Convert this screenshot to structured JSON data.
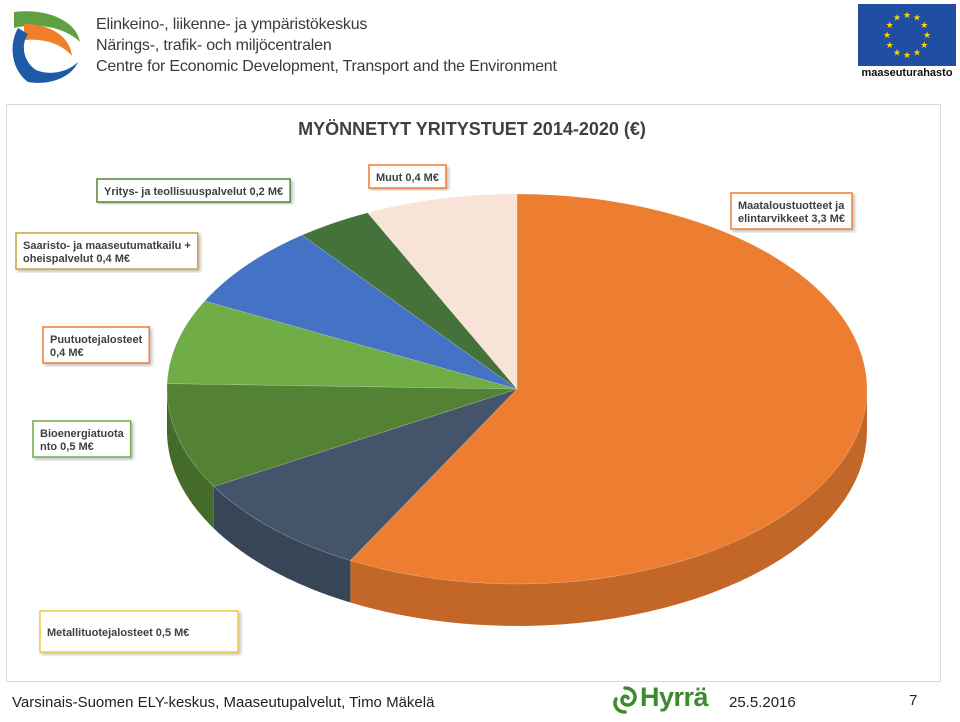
{
  "header": {
    "org_lines": [
      "Elinkeino-, liikenne- ja ympäristökeskus",
      "Närings-, trafik- och miljöcentralen",
      "Centre for Economic Development, Transport and the Environment"
    ],
    "eu_label": "maaseuturahasto"
  },
  "chart_data": {
    "type": "pie",
    "title": "MYÖNNETYT YRITYSTUET 2014-2020 (€)",
    "unit": "M€",
    "slices": [
      {
        "label": "Maataloustuotteet ja elintarvikkeet 3,3 M€",
        "label_lines": [
          "Maataloustuotteet ja",
          "elintarvikkeet 3,3 M€"
        ],
        "value": 3.3,
        "color": "#ed7d31",
        "border": "#ed7d31"
      },
      {
        "label": "Metallituotejalosteet 0,5 M€",
        "label_lines": [
          "Metallituotejalosteet 0,5 M€"
        ],
        "value": 0.5,
        "color": "#44546a",
        "border": "#f2c744"
      },
      {
        "label": "Bioenergiatuotanto 0,5 M€",
        "label_lines": [
          "Bioenergiatuota",
          "nto 0,5 M€"
        ],
        "value": 0.5,
        "color": "#548235",
        "border": "#70ad47"
      },
      {
        "label": "Puutuotejalosteet 0,4 M€",
        "label_lines": [
          "Puutuotejalosteet",
          "0,4 M€"
        ],
        "value": 0.4,
        "color": "#70ad47",
        "border": "#ed7d31"
      },
      {
        "label": "Saaristo- ja maaseutumatkailu + oheispalvelut 0,4 M€",
        "label_lines": [
          "Saaristo- ja maaseutumatkailu +",
          "oheispalvelut 0,4 M€"
        ],
        "value": 0.4,
        "color": "#4472c4",
        "border": "#c9a03c"
      },
      {
        "label": "Yritys- ja teollisuuspalvelut 0,2 M€",
        "label_lines": [
          "Yritys- ja teollisuuspalvelut 0,2 M€"
        ],
        "value": 0.2,
        "color": "#44723a",
        "border": "#548235"
      },
      {
        "label": "Muut 0,4 M€",
        "label_lines": [
          "Muut 0,4 M€"
        ],
        "value": 0.4,
        "color": "#f8e4d6",
        "border": "#ed7d31"
      }
    ]
  },
  "footer": {
    "source": "Varsinais-Suomen ELY-keskus, Maaseutupalvelut, Timo Mäkelä",
    "logo_text": "Hyrrä",
    "date": "25.5.2016",
    "page": "7"
  }
}
